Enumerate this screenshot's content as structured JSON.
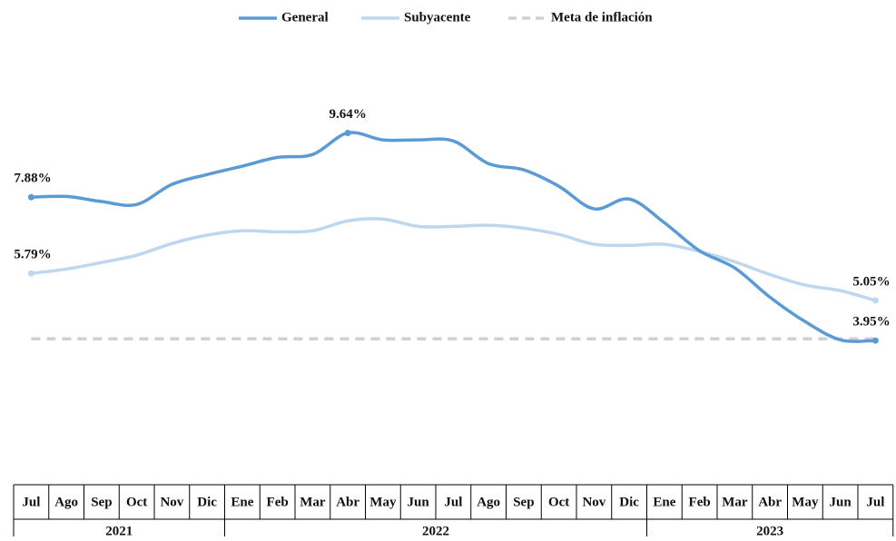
{
  "chart_data": {
    "type": "line",
    "categories": [
      "Jul",
      "Ago",
      "Sep",
      "Oct",
      "Nov",
      "Dic",
      "Ene",
      "Feb",
      "Mar",
      "Abr",
      "May",
      "Jun",
      "Jul",
      "Ago",
      "Sep",
      "Oct",
      "Nov",
      "Dic",
      "Ene",
      "Feb",
      "Mar",
      "Abr",
      "May",
      "Jun",
      "Jul"
    ],
    "groups": [
      {
        "label": "2021",
        "span": 6
      },
      {
        "label": "2022",
        "span": 12
      },
      {
        "label": "2023",
        "span": 7
      }
    ],
    "ylim": [
      0,
      12
    ],
    "legend": "top",
    "series": [
      {
        "name": "General",
        "color": "#5b9bd5",
        "dash": false,
        "values": [
          7.88,
          7.9,
          7.76,
          7.68,
          8.23,
          8.5,
          8.73,
          8.97,
          9.05,
          9.64,
          9.45,
          9.45,
          9.42,
          8.8,
          8.63,
          8.18,
          7.56,
          7.83,
          7.18,
          6.41,
          5.94,
          5.14,
          4.47,
          3.97,
          3.95
        ],
        "value_labels": [
          "7.88%",
          null,
          null,
          null,
          null,
          null,
          null,
          null,
          null,
          "9.64%",
          null,
          null,
          null,
          null,
          null,
          null,
          null,
          null,
          null,
          null,
          null,
          null,
          null,
          null,
          "3.95%"
        ]
      },
      {
        "name": "Subyacente",
        "color": "#bdd7ee",
        "dash": false,
        "values": [
          5.79,
          5.91,
          6.09,
          6.29,
          6.61,
          6.84,
          6.96,
          6.93,
          6.96,
          7.23,
          7.28,
          7.08,
          7.08,
          7.11,
          7.03,
          6.86,
          6.59,
          6.56,
          6.59,
          6.39,
          6.11,
          5.76,
          5.47,
          5.32,
          5.05
        ],
        "value_labels": [
          "5.79%",
          null,
          null,
          null,
          null,
          null,
          null,
          null,
          null,
          null,
          null,
          null,
          null,
          null,
          null,
          null,
          null,
          null,
          null,
          null,
          null,
          null,
          null,
          null,
          "5.05%"
        ]
      },
      {
        "name": "Meta de inflación",
        "color": "#d0d0d0",
        "dash": true,
        "values": [
          4,
          4,
          4,
          4,
          4,
          4,
          4,
          4,
          4,
          4,
          4,
          4,
          4,
          4,
          4,
          4,
          4,
          4,
          4,
          4,
          4,
          4,
          4,
          4,
          4
        ]
      }
    ]
  }
}
